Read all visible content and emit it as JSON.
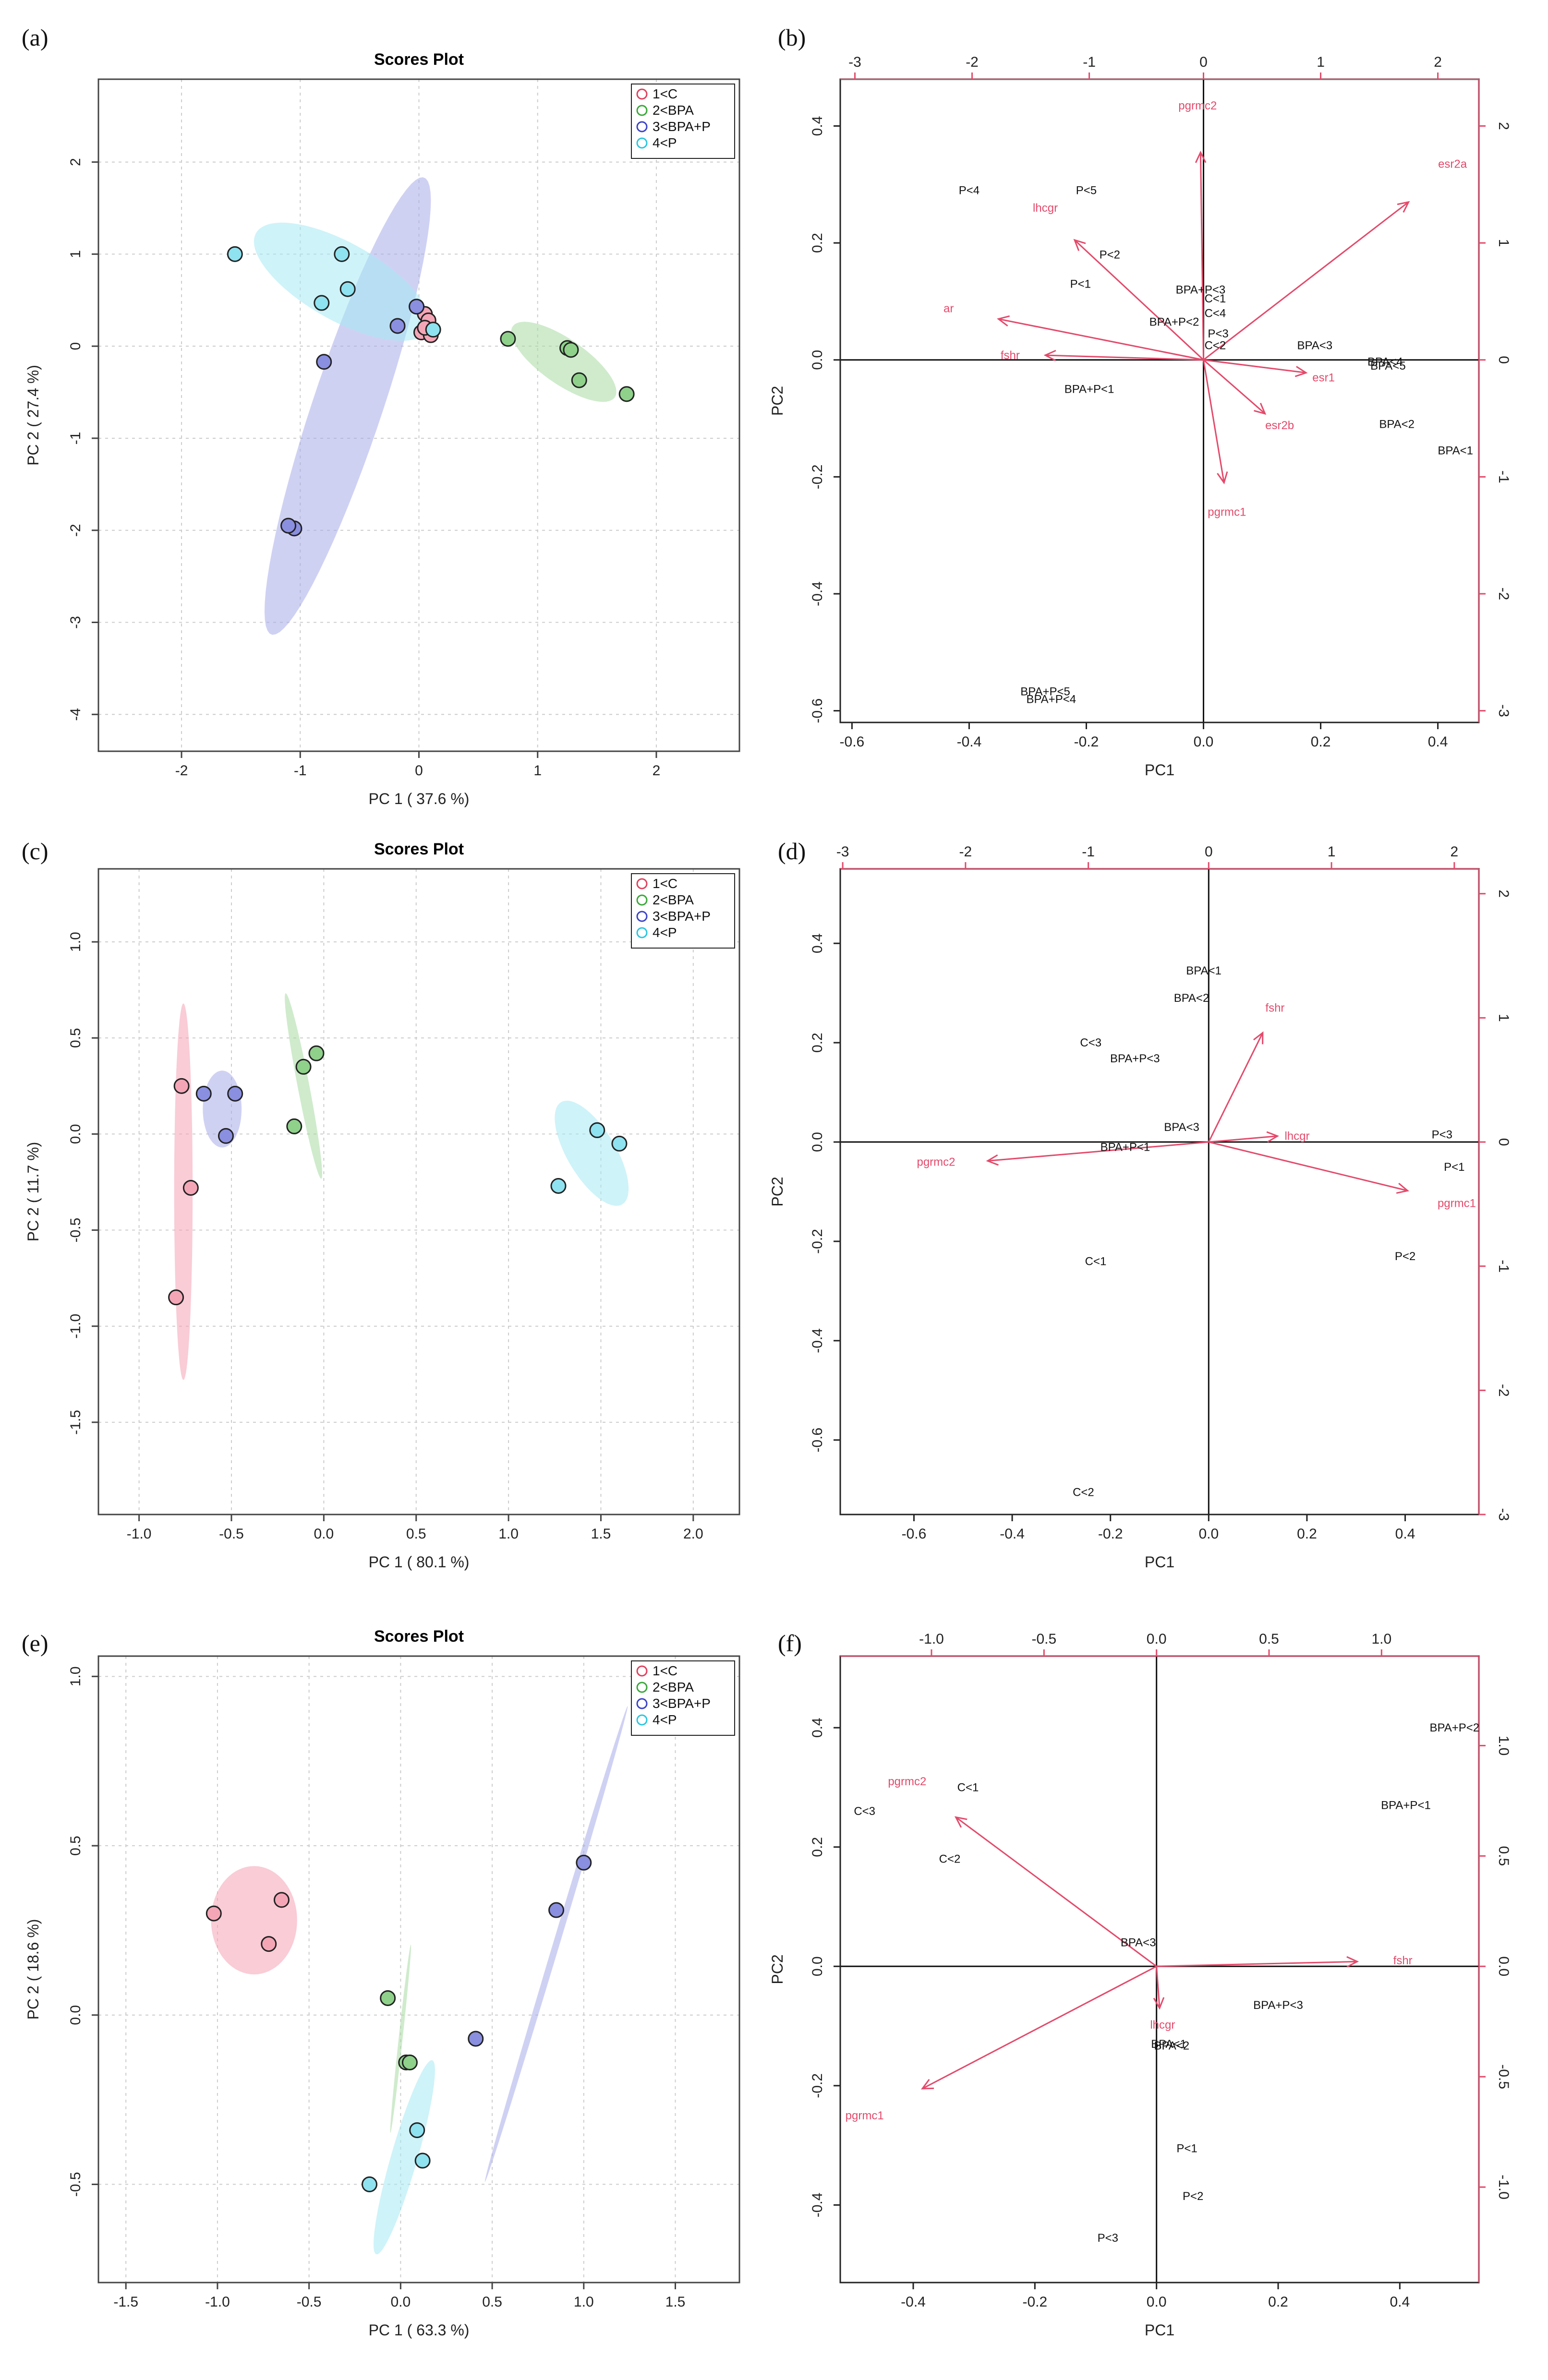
{
  "colors": {
    "group_fill": [
      "#f4a6b7",
      "#8fd18b",
      "#8a8fe0",
      "#8fe2f0"
    ],
    "group_stroke": [
      "#e0415f",
      "#3aa83a",
      "#3b43c8",
      "#2cc6df"
    ],
    "ellipse_fill": [
      "#f4a3b5",
      "#a7dba2",
      "#a7ace9",
      "#a6e9f4"
    ],
    "arrow": "#e34a6b",
    "grid": "#cccccc"
  },
  "panels": {
    "a": "(a)",
    "b": "(b)",
    "c": "(c)",
    "d": "(d)",
    "e": "(e)",
    "f": "(f)"
  },
  "chart_data": [
    {
      "id": "a",
      "type": "scatter",
      "title": "Scores Plot",
      "xlabel": "PC 1 ( 37.6 %)",
      "ylabel": "PC 2 ( 27.4 %)",
      "xlim": [
        -2.7,
        2.7
      ],
      "ylim": [
        -4.4,
        2.9
      ],
      "xticks": [
        -2,
        -1,
        0,
        1,
        2
      ],
      "yticks": [
        -4,
        -3,
        -2,
        -1,
        0,
        1,
        2
      ],
      "legend": {
        "position": "top-right",
        "entries": [
          "1<C",
          "2<BPA",
          "3<BPA+P",
          "4<P"
        ]
      },
      "series": [
        {
          "name": "1<C",
          "group": 0,
          "points": [
            [
              0.05,
              0.35
            ],
            [
              0.08,
              0.28
            ],
            [
              0.02,
              0.15
            ],
            [
              0.1,
              0.12
            ],
            [
              0.05,
              0.2
            ]
          ]
        },
        {
          "name": "2<BPA",
          "group": 1,
          "points": [
            [
              0.75,
              0.08
            ],
            [
              1.25,
              -0.02
            ],
            [
              1.28,
              -0.04
            ],
            [
              1.35,
              -0.37
            ],
            [
              1.75,
              -0.52
            ]
          ]
        },
        {
          "name": "3<BPA+P",
          "group": 2,
          "points": [
            [
              -0.02,
              0.43
            ],
            [
              -0.18,
              0.22
            ],
            [
              -0.8,
              -0.17
            ],
            [
              -1.05,
              -1.98
            ],
            [
              -1.1,
              -1.95
            ]
          ]
        },
        {
          "name": "4<P",
          "group": 3,
          "points": [
            [
              -1.55,
              1.0
            ],
            [
              -0.65,
              1.0
            ],
            [
              -0.6,
              0.62
            ],
            [
              -0.82,
              0.47
            ],
            [
              0.12,
              0.18
            ]
          ]
        }
      ],
      "ellipses": [
        {
          "group": 1,
          "cx": 1.22,
          "cy": -0.17,
          "rx": 0.95,
          "ry": 0.27,
          "angle_deg": -22
        },
        {
          "group": 2,
          "cx": -0.6,
          "cy": -0.65,
          "rx": 2.8,
          "ry": 0.55,
          "angle_deg": 62
        },
        {
          "group": 3,
          "cx": -0.65,
          "cy": 0.7,
          "rx": 1.55,
          "ry": 0.45,
          "angle_deg": -18
        }
      ]
    },
    {
      "id": "b",
      "type": "biplot",
      "xlabel": "PC1",
      "ylabel": "PC2",
      "xlim": [
        -0.62,
        0.47
      ],
      "ylim": [
        -0.62,
        0.48
      ],
      "xticks": [
        -0.6,
        -0.4,
        -0.2,
        0.0,
        0.2,
        0.4
      ],
      "yticks": [
        -0.6,
        -0.4,
        -0.2,
        0.0,
        0.2,
        0.4
      ],
      "top_ticks": [
        "-3",
        "-2",
        "-1",
        "0",
        "1",
        "2"
      ],
      "top_tick_x": [
        -0.595,
        -0.395,
        -0.195,
        0.0,
        0.2,
        0.4
      ],
      "right_ticks": [
        "2",
        "1",
        "0",
        "-1",
        "-2",
        "-3"
      ],
      "right_tick_y": [
        0.4,
        0.2,
        0.0,
        -0.2,
        -0.4,
        -0.6
      ],
      "observations": [
        {
          "label": "P<4",
          "x": -0.4,
          "y": 0.29
        },
        {
          "label": "P<5",
          "x": -0.2,
          "y": 0.29
        },
        {
          "label": "P<2",
          "x": -0.16,
          "y": 0.18
        },
        {
          "label": "P<1",
          "x": -0.21,
          "y": 0.13
        },
        {
          "label": "BPA+P<3",
          "x": -0.005,
          "y": 0.12
        },
        {
          "label": "C<1",
          "x": 0.02,
          "y": 0.105
        },
        {
          "label": "C<4",
          "x": 0.02,
          "y": 0.08
        },
        {
          "label": "BPA+P<2",
          "x": -0.05,
          "y": 0.065
        },
        {
          "label": "P<3",
          "x": 0.025,
          "y": 0.045
        },
        {
          "label": "C<2",
          "x": 0.02,
          "y": 0.025
        },
        {
          "label": "BPA<3",
          "x": 0.19,
          "y": 0.025
        },
        {
          "label": "BPA<4",
          "x": 0.31,
          "y": -0.003
        },
        {
          "label": "BPA<5",
          "x": 0.315,
          "y": -0.01
        },
        {
          "label": "BPA<2",
          "x": 0.33,
          "y": -0.11
        },
        {
          "label": "BPA<1",
          "x": 0.43,
          "y": -0.155
        },
        {
          "label": "BPA+P<1",
          "x": -0.195,
          "y": -0.05
        },
        {
          "label": "BPA+P<5",
          "x": -0.27,
          "y": -0.567
        },
        {
          "label": "BPA+P<4",
          "x": -0.26,
          "y": -0.58
        }
      ],
      "loadings": [
        {
          "label": "esr2a",
          "x": 0.35,
          "y": 0.27,
          "lx": 0.425,
          "ly": 0.335
        },
        {
          "label": "pgrmc2",
          "x": -0.005,
          "y": 0.355,
          "lx": -0.01,
          "ly": 0.435
        },
        {
          "label": "lhcgr",
          "x": -0.22,
          "y": 0.205,
          "lx": -0.27,
          "ly": 0.26
        },
        {
          "label": "ar",
          "x": -0.35,
          "y": 0.07,
          "lx": -0.435,
          "ly": 0.088
        },
        {
          "label": "fshr",
          "x": -0.27,
          "y": 0.008,
          "lx": -0.33,
          "ly": 0.008
        },
        {
          "label": "esr1",
          "x": 0.175,
          "y": -0.022,
          "lx": 0.205,
          "ly": -0.03
        },
        {
          "label": "esr2b",
          "x": 0.105,
          "y": -0.092,
          "lx": 0.13,
          "ly": -0.112
        },
        {
          "label": "pgrmc1",
          "x": 0.035,
          "y": -0.21,
          "lx": 0.04,
          "ly": -0.26
        }
      ]
    },
    {
      "id": "c",
      "type": "scatter",
      "title": "Scores Plot",
      "xlabel": "PC 1 ( 80.1 %)",
      "ylabel": "PC 2 ( 11.7 %)",
      "xlim": [
        -1.22,
        2.25
      ],
      "ylim": [
        -1.98,
        1.38
      ],
      "xticks": [
        -1.0,
        -0.5,
        0.0,
        0.5,
        1.0,
        1.5,
        2.0
      ],
      "xtick_labels": [
        "-1.0",
        "-0.5",
        "0.0",
        "0.5",
        "1.0",
        "1.5",
        "2.0"
      ],
      "yticks": [
        -1.5,
        -1.0,
        -0.5,
        0.0,
        0.5,
        1.0
      ],
      "ytick_labels": [
        "-1.5",
        "-1.0",
        "-0.5",
        "0.0",
        "0.5",
        "1.0"
      ],
      "legend": {
        "position": "top-right",
        "entries": [
          "1<C",
          "2<BPA",
          "3<BPA+P",
          "4<P"
        ]
      },
      "series": [
        {
          "name": "1<C",
          "group": 0,
          "points": [
            [
              -0.77,
              0.25
            ],
            [
              -0.72,
              -0.28
            ],
            [
              -0.8,
              -0.85
            ]
          ]
        },
        {
          "name": "2<BPA",
          "group": 1,
          "points": [
            [
              -0.04,
              0.42
            ],
            [
              -0.11,
              0.35
            ],
            [
              -0.16,
              0.04
            ]
          ]
        },
        {
          "name": "3<BPA+P",
          "group": 2,
          "points": [
            [
              -0.65,
              0.21
            ],
            [
              -0.48,
              0.21
            ],
            [
              -0.53,
              -0.01
            ]
          ]
        },
        {
          "name": "4<P",
          "group": 3,
          "points": [
            [
              1.48,
              0.02
            ],
            [
              1.6,
              -0.05
            ],
            [
              1.27,
              -0.27
            ]
          ]
        }
      ],
      "ellipses": [
        {
          "group": 0,
          "cx": -0.76,
          "cy": -0.3,
          "rx": 0.1,
          "ry": 0.98,
          "angle_deg": 0
        },
        {
          "group": 1,
          "cx": -0.11,
          "cy": 0.25,
          "rx": 0.06,
          "ry": 0.52,
          "angle_deg": 22
        },
        {
          "group": 2,
          "cx": -0.55,
          "cy": 0.13,
          "rx": 0.21,
          "ry": 0.2,
          "angle_deg": 0
        },
        {
          "group": 3,
          "cx": 1.45,
          "cy": -0.1,
          "rx": 0.45,
          "ry": 0.18,
          "angle_deg": -30
        }
      ]
    },
    {
      "id": "d",
      "type": "biplot",
      "xlabel": "PC1",
      "ylabel": "PC2",
      "xlim": [
        -0.75,
        0.55
      ],
      "ylim": [
        -0.75,
        0.55
      ],
      "xticks": [
        -0.6,
        -0.4,
        -0.2,
        0.0,
        0.2,
        0.4
      ],
      "yticks": [
        -0.6,
        -0.4,
        -0.2,
        0.0,
        0.2,
        0.4
      ],
      "top_ticks": [
        "-3",
        "-2",
        "-1",
        "0",
        "1",
        "2"
      ],
      "top_tick_x": [
        -0.745,
        -0.495,
        -0.245,
        0.0,
        0.25,
        0.5
      ],
      "right_ticks": [
        "2",
        "1",
        "0",
        "-1",
        "-2",
        "-3"
      ],
      "right_tick_y": [
        0.5,
        0.25,
        0.0,
        -0.25,
        -0.5,
        -0.75
      ],
      "observations": [
        {
          "label": "BPA<1",
          "x": -0.01,
          "y": 0.345
        },
        {
          "label": "BPA<2",
          "x": -0.035,
          "y": 0.29
        },
        {
          "label": "C<3",
          "x": -0.24,
          "y": 0.2
        },
        {
          "label": "BPA+P<3",
          "x": -0.15,
          "y": 0.168
        },
        {
          "label": "BPA<3",
          "x": -0.055,
          "y": 0.03
        },
        {
          "label": "BPA+P<1",
          "x": -0.17,
          "y": -0.01
        },
        {
          "label": "P<3",
          "x": 0.475,
          "y": 0.015
        },
        {
          "label": "P<1",
          "x": 0.5,
          "y": -0.05
        },
        {
          "label": "P<2",
          "x": 0.4,
          "y": -0.23
        },
        {
          "label": "C<1",
          "x": -0.23,
          "y": -0.24
        },
        {
          "label": "C<2",
          "x": -0.255,
          "y": -0.705
        }
      ],
      "loadings": [
        {
          "label": "fshr",
          "x": 0.11,
          "y": 0.22,
          "lx": 0.135,
          "ly": 0.27
        },
        {
          "label": "lhcgr",
          "x": 0.14,
          "y": 0.012,
          "lx": 0.18,
          "ly": 0.012
        },
        {
          "label": "pgrmc2",
          "x": -0.45,
          "y": -0.038,
          "lx": -0.555,
          "ly": -0.04
        },
        {
          "label": "pgrmc1",
          "x": 0.405,
          "y": -0.098,
          "lx": 0.505,
          "ly": -0.123
        }
      ]
    },
    {
      "id": "e",
      "type": "scatter",
      "title": "Scores Plot",
      "xlabel": "PC 1 ( 63.3 %)",
      "ylabel": "PC 2 ( 18.6 %)",
      "xlim": [
        -1.65,
        1.85
      ],
      "ylim": [
        -0.79,
        1.06
      ],
      "xticks": [
        -1.5,
        -1.0,
        -0.5,
        0.0,
        0.5,
        1.0,
        1.5
      ],
      "xtick_labels": [
        "-1.5",
        "-1.0",
        "-0.5",
        "0.0",
        "0.5",
        "1.0",
        "1.5"
      ],
      "yticks": [
        -0.5,
        0.0,
        0.5,
        1.0
      ],
      "ytick_labels": [
        "-0.5",
        "0.0",
        "0.5",
        "1.0"
      ],
      "legend": {
        "position": "top-right",
        "entries": [
          "1<C",
          "2<BPA",
          "3<BPA+P",
          "4<P"
        ]
      },
      "series": [
        {
          "name": "1<C",
          "group": 0,
          "points": [
            [
              -1.02,
              0.3
            ],
            [
              -0.65,
              0.34
            ],
            [
              -0.72,
              0.21
            ]
          ]
        },
        {
          "name": "2<BPA",
          "group": 1,
          "points": [
            [
              -0.07,
              0.05
            ],
            [
              0.03,
              -0.14
            ],
            [
              0.05,
              -0.14
            ]
          ]
        },
        {
          "name": "3<BPA+P",
          "group": 2,
          "points": [
            [
              1.0,
              0.45
            ],
            [
              0.85,
              0.31
            ],
            [
              0.41,
              -0.07
            ]
          ]
        },
        {
          "name": "4<P",
          "group": 3,
          "points": [
            [
              0.09,
              -0.34
            ],
            [
              0.12,
              -0.43
            ],
            [
              -0.17,
              -0.5
            ]
          ]
        }
      ],
      "ellipses": [
        {
          "group": 0,
          "cx": -0.8,
          "cy": 0.28,
          "rx": 0.47,
          "ry": 0.16,
          "angle_deg": 0
        },
        {
          "group": 1,
          "cx": 0.0,
          "cy": -0.07,
          "rx": 0.3,
          "ry": 0.02,
          "angle_deg": 68
        },
        {
          "group": 2,
          "cx": 0.85,
          "cy": 0.21,
          "rx": 1.05,
          "ry": 0.025,
          "angle_deg": 42
        },
        {
          "group": 3,
          "cx": 0.02,
          "cy": -0.42,
          "rx": 0.43,
          "ry": 0.1,
          "angle_deg": 40
        }
      ]
    },
    {
      "id": "f",
      "type": "biplot",
      "xlabel": "PC1",
      "ylabel": "PC2",
      "xlim": [
        -0.52,
        0.53
      ],
      "ylim": [
        -0.53,
        0.52
      ],
      "xticks": [
        -0.4,
        -0.2,
        0.0,
        0.2,
        0.4
      ],
      "yticks": [
        -0.4,
        -0.2,
        0.0,
        0.2,
        0.4
      ],
      "top_ticks": [
        "-1.0",
        "-0.5",
        "0.0",
        "0.5",
        "1.0"
      ],
      "top_tick_x": [
        -0.37,
        -0.185,
        0.0,
        0.185,
        0.37
      ],
      "right_ticks": [
        "1.0",
        "0.5",
        "0.0",
        "-0.5",
        "-1.0"
      ],
      "right_tick_y": [
        0.37,
        0.185,
        0.0,
        -0.185,
        -0.37
      ],
      "observations": [
        {
          "label": "BPA+P<2",
          "x": 0.49,
          "y": 0.4
        },
        {
          "label": "BPA+P<1",
          "x": 0.41,
          "y": 0.27
        },
        {
          "label": "C<1",
          "x": -0.31,
          "y": 0.3
        },
        {
          "label": "C<3",
          "x": -0.48,
          "y": 0.26
        },
        {
          "label": "C<2",
          "x": -0.34,
          "y": 0.18
        },
        {
          "label": "BPA<3",
          "x": -0.03,
          "y": 0.04
        },
        {
          "label": "BPA+P<3",
          "x": 0.2,
          "y": -0.065
        },
        {
          "label": "BPA<1",
          "x": 0.02,
          "y": -0.13
        },
        {
          "label": "BPA<2",
          "x": 0.025,
          "y": -0.133
        },
        {
          "label": "P<1",
          "x": 0.05,
          "y": -0.305
        },
        {
          "label": "P<2",
          "x": 0.06,
          "y": -0.385
        },
        {
          "label": "P<3",
          "x": -0.08,
          "y": -0.455
        }
      ],
      "loadings": [
        {
          "label": "pgrmc2",
          "x": -0.33,
          "y": 0.25,
          "lx": -0.41,
          "ly": 0.31
        },
        {
          "label": "fshr",
          "x": 0.33,
          "y": 0.008,
          "lx": 0.405,
          "ly": 0.01
        },
        {
          "label": "lhcgr",
          "x": 0.005,
          "y": -0.07,
          "lx": 0.01,
          "ly": -0.098
        },
        {
          "label": "pgrmc1",
          "x": -0.385,
          "y": -0.205,
          "lx": -0.48,
          "ly": -0.25
        }
      ]
    }
  ]
}
